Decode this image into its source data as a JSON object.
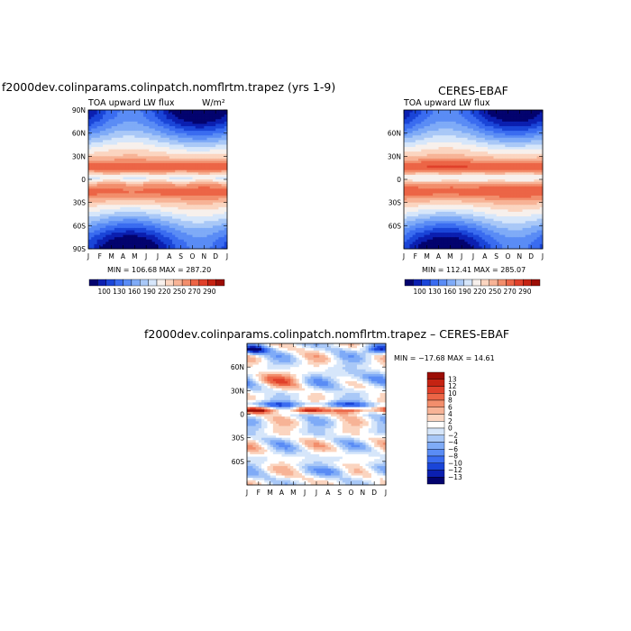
{
  "panels": [
    {
      "title": "f2000dev.colinparams.colinpatch.nomflrtm.trapez (yrs 1-9)",
      "field_label": "TOA upward LW flux",
      "units": "W/m²",
      "minmax": "MIN = 106.68 MAX = 287.20",
      "months": [
        "J",
        "F",
        "M",
        "A",
        "M",
        "J",
        "J",
        "A",
        "S",
        "O",
        "N",
        "D",
        "J"
      ],
      "lat_labels": [
        "90N",
        "60N",
        "30N",
        "0",
        "30S",
        "60S",
        "90S"
      ],
      "colorbar_labels": [
        "100",
        "130",
        "160",
        "190",
        "220",
        "250",
        "270",
        "290"
      ]
    },
    {
      "title": "CERES-EBAF",
      "field_label": "TOA upward LW flux",
      "minmax": "MIN = 112.41 MAX = 285.07",
      "months": [
        "J",
        "F",
        "M",
        "A",
        "M",
        "J",
        "J",
        "A",
        "S",
        "O",
        "N",
        "D",
        "J"
      ],
      "lat_labels": [
        "60N",
        "30N",
        "0",
        "30S",
        "60S"
      ],
      "colorbar_labels": [
        "100",
        "130",
        "160",
        "190",
        "220",
        "250",
        "270",
        "290"
      ]
    },
    {
      "title": "f2000dev.colinparams.colinpatch.nomflrtm.trapez – CERES-EBAF",
      "minmax": "MIN = −17.68 MAX =  14.61",
      "months": [
        "J",
        "F",
        "M",
        "A",
        "M",
        "J",
        "J",
        "A",
        "S",
        "O",
        "N",
        "D",
        "J"
      ],
      "lat_labels": [
        "60N",
        "30N",
        "0",
        "30S",
        "60S"
      ],
      "colorbar_labels": [
        "13",
        "12",
        "10",
        "8",
        "6",
        "4",
        "2",
        "0",
        "−2",
        "−4",
        "−6",
        "−8",
        "−10",
        "−12",
        "−13"
      ]
    }
  ],
  "chart_data": [
    {
      "type": "heatmap",
      "title": "f2000dev.colinparams.colinpatch.nomflrtm.trapez (yrs 1-9)",
      "subtitle": "TOA upward LW flux",
      "units": "W/m²",
      "x_ticks": [
        "J",
        "F",
        "M",
        "A",
        "M",
        "J",
        "J",
        "A",
        "S",
        "O",
        "N",
        "D",
        "J"
      ],
      "y_ticks": [
        "90N",
        "60N",
        "30N",
        "0",
        "30S",
        "60S",
        "90S"
      ],
      "ylim": [
        -90,
        90
      ],
      "min": 106.68,
      "max": 287.2,
      "levels": [
        100,
        115,
        130,
        145,
        160,
        175,
        190,
        205,
        220,
        235,
        250,
        260,
        270,
        280,
        290
      ],
      "colors": [
        "#03036e",
        "#0b1fb0",
        "#1a45d8",
        "#3a6cf0",
        "#5a8cf5",
        "#7fabf7",
        "#a9c8f7",
        "#d6e6fa",
        "#f7f0ec",
        "#fbd5c0",
        "#f7b396",
        "#f28e6c",
        "#ec6546",
        "#e0402a",
        "#c52312",
        "#9c0d05"
      ]
    },
    {
      "type": "heatmap",
      "title": "CERES-EBAF",
      "subtitle": "TOA upward LW flux",
      "x_ticks": [
        "J",
        "F",
        "M",
        "A",
        "M",
        "J",
        "J",
        "A",
        "S",
        "O",
        "N",
        "D",
        "J"
      ],
      "y_ticks": [
        "60N",
        "30N",
        "0",
        "30S",
        "60S"
      ],
      "ylim": [
        -90,
        90
      ],
      "min": 112.41,
      "max": 285.07,
      "levels": [
        100,
        115,
        130,
        145,
        160,
        175,
        190,
        205,
        220,
        235,
        250,
        260,
        270,
        280,
        290
      ],
      "colors": [
        "#03036e",
        "#0b1fb0",
        "#1a45d8",
        "#3a6cf0",
        "#5a8cf5",
        "#7fabf7",
        "#a9c8f7",
        "#d6e6fa",
        "#f7f0ec",
        "#fbd5c0",
        "#f7b396",
        "#f28e6c",
        "#ec6546",
        "#e0402a",
        "#c52312",
        "#9c0d05"
      ]
    },
    {
      "type": "heatmap",
      "title": "f2000dev.colinparams.colinpatch.nomflrtm.trapez – CERES-EBAF",
      "x_ticks": [
        "J",
        "F",
        "M",
        "A",
        "M",
        "J",
        "J",
        "A",
        "S",
        "O",
        "N",
        "D",
        "J"
      ],
      "y_ticks": [
        "60N",
        "30N",
        "0",
        "30S",
        "60S"
      ],
      "ylim": [
        -90,
        90
      ],
      "min": -17.68,
      "max": 14.61,
      "levels": [
        -13,
        -12,
        -10,
        -8,
        -6,
        -4,
        -2,
        0,
        2,
        4,
        6,
        8,
        10,
        12,
        13
      ],
      "colors": [
        "#03036e",
        "#0b1fb0",
        "#1a45d8",
        "#3a6cf0",
        "#5a8cf5",
        "#7fabf7",
        "#a9c8f7",
        "#d6e6fa",
        "#ffffff",
        "#fbd5c0",
        "#f7b396",
        "#f28e6c",
        "#ec6546",
        "#e0402a",
        "#c52312",
        "#9c0d05"
      ]
    }
  ]
}
